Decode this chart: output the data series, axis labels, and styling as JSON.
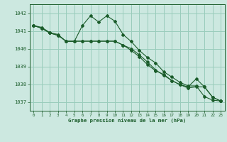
{
  "title": "Graphe pression niveau de la mer (hPa)",
  "bg_color": "#cce8e0",
  "grid_color": "#99ccbb",
  "line_color": "#1a5c2a",
  "xlim": [
    -0.5,
    23.5
  ],
  "ylim": [
    1036.5,
    1042.5
  ],
  "yticks": [
    1037,
    1038,
    1039,
    1040,
    1041,
    1042
  ],
  "xticks": [
    0,
    1,
    2,
    3,
    4,
    5,
    6,
    7,
    8,
    9,
    10,
    11,
    12,
    13,
    14,
    15,
    16,
    17,
    18,
    19,
    20,
    21,
    22,
    23
  ],
  "series": [
    [
      1041.3,
      1041.2,
      1040.9,
      1040.8,
      1040.4,
      1040.4,
      1041.3,
      1041.85,
      1041.5,
      1041.85,
      1041.55,
      1040.8,
      1040.4,
      1039.9,
      1039.5,
      1039.2,
      1038.7,
      1038.4,
      1038.1,
      1037.9,
      1037.9,
      1037.3,
      1037.1,
      1037.05
    ],
    [
      1041.3,
      1041.15,
      1040.88,
      1040.75,
      1040.42,
      1040.42,
      1040.42,
      1040.42,
      1040.42,
      1040.42,
      1040.42,
      1040.2,
      1040.0,
      1039.65,
      1039.25,
      1038.8,
      1038.5,
      1038.2,
      1037.97,
      1037.78,
      1037.85,
      1037.85,
      1037.27,
      1037.05
    ],
    [
      1041.3,
      1041.15,
      1040.88,
      1040.75,
      1040.42,
      1040.42,
      1040.42,
      1040.42,
      1040.42,
      1040.42,
      1040.42,
      1040.2,
      1039.9,
      1039.55,
      1039.1,
      1038.75,
      1038.55,
      1038.2,
      1037.97,
      1037.85,
      1038.3,
      1037.85,
      1037.27,
      1037.05
    ]
  ]
}
